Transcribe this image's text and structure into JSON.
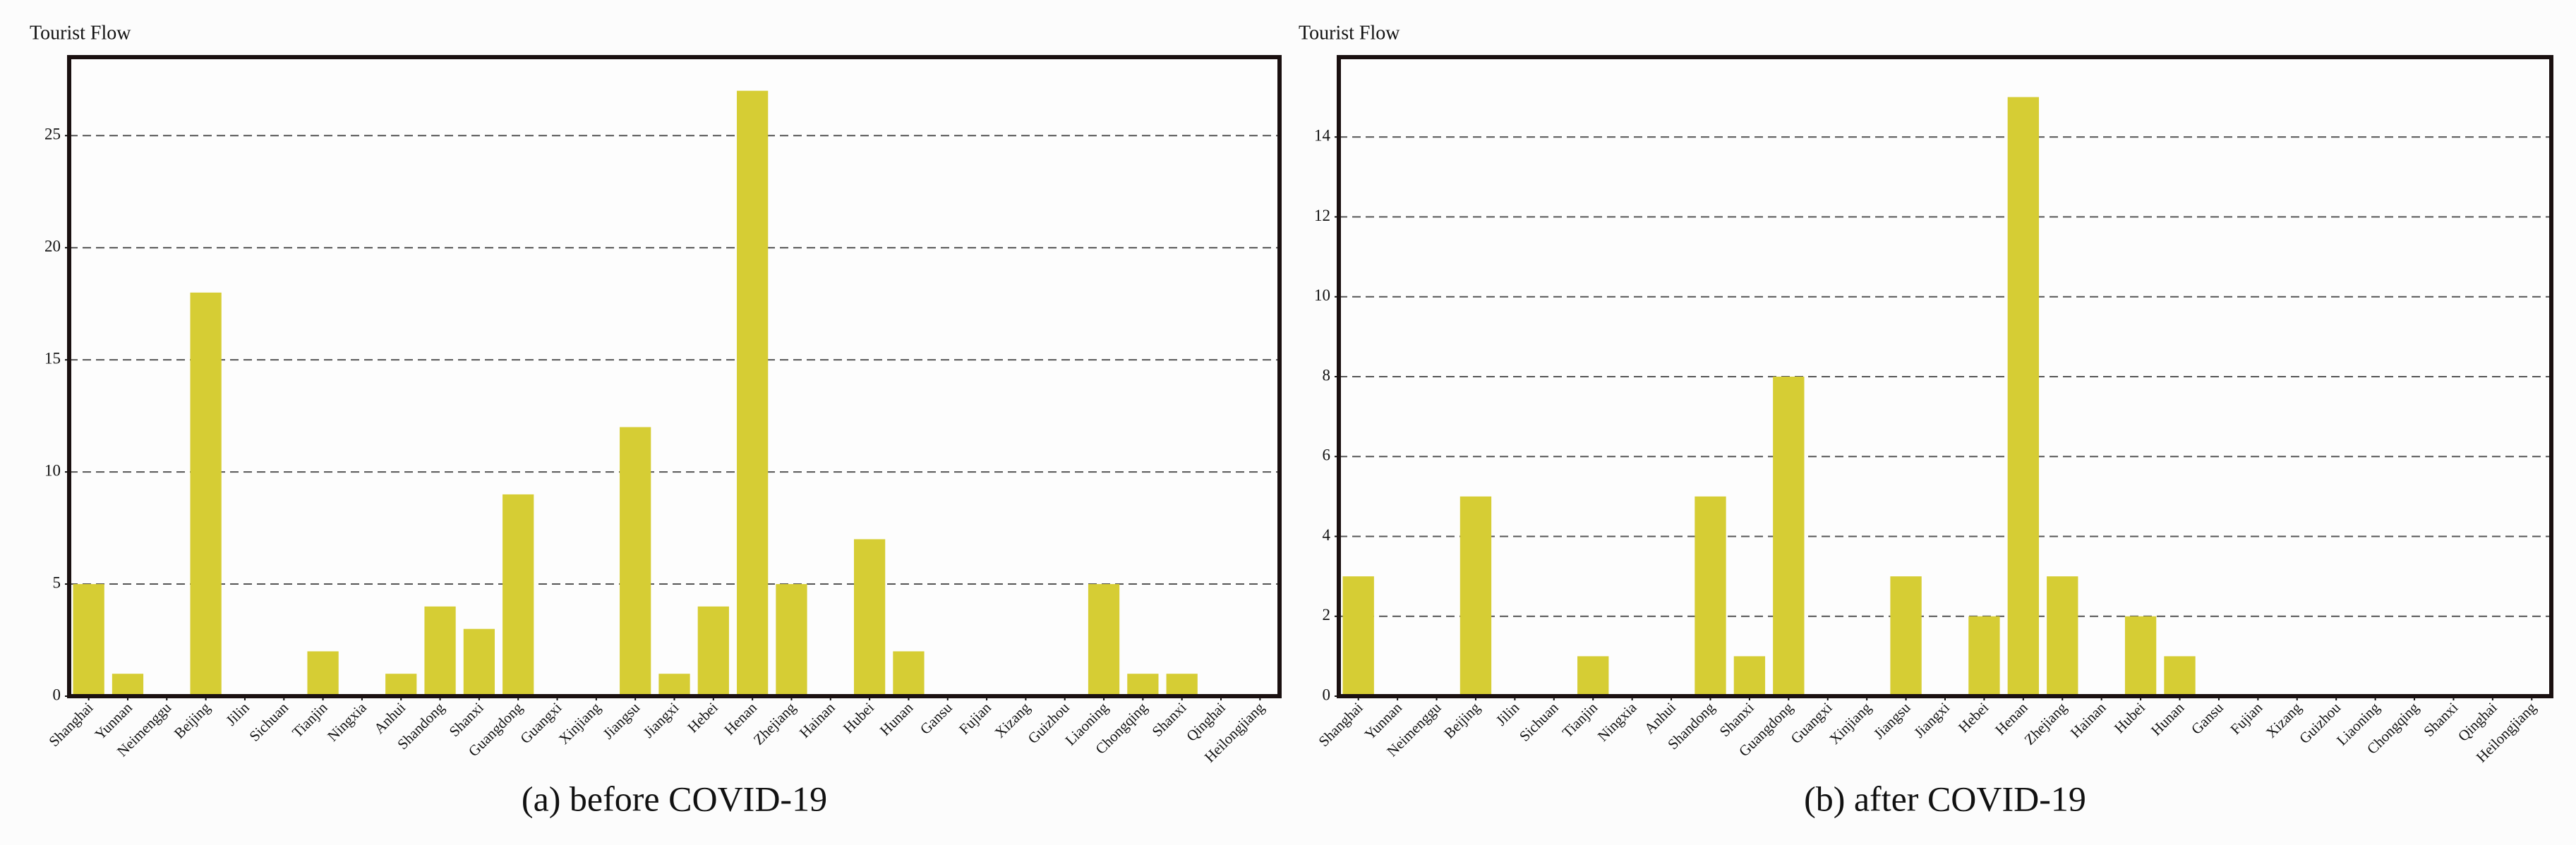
{
  "chart_data": [
    {
      "type": "bar",
      "y_label": "Tourist Flow",
      "caption": "(a) before COVID-19",
      "categories": [
        "Shanghai",
        "Yunnan",
        "Neimenggu",
        "Beijing",
        "Jilin",
        "Sichuan",
        "Tianjin",
        "Ningxia",
        "Anhui",
        "Shandong",
        "Shanxi",
        "Guangdong",
        "Guangxi",
        "Xinjiang",
        "Jiangsu",
        "Jiangxi",
        "Hebei",
        "Henan",
        "Zhejiang",
        "Hainan",
        "Hubei",
        "Hunan",
        "Gansu",
        "Fujian",
        "Xizang",
        "Guizhou",
        "Liaoning",
        "Chongqing",
        "Shanxi",
        "Qinghai",
        "Heilongjiang"
      ],
      "values": [
        5,
        1,
        0,
        18,
        0,
        0,
        2,
        0,
        1,
        4,
        3,
        9,
        0,
        0,
        12,
        1,
        4,
        27,
        5,
        0,
        7,
        2,
        0,
        0,
        0,
        0,
        5,
        1,
        1,
        0,
        0
      ],
      "color": "#d6cd34",
      "ylim": [
        0,
        28.5
      ],
      "yticks": [
        0,
        5,
        10,
        15,
        20,
        25
      ],
      "grid": true
    },
    {
      "type": "bar",
      "y_label": "Tourist Flow",
      "caption": "(b) after COVID-19",
      "categories": [
        "Shanghai",
        "Yunnan",
        "Neimenggu",
        "Beijing",
        "Jilin",
        "Sichuan",
        "Tianjin",
        "Ningxia",
        "Anhui",
        "Shandong",
        "Shanxi",
        "Guangdong",
        "Guangxi",
        "Xinjiang",
        "Jiangsu",
        "Jiangxi",
        "Hebei",
        "Henan",
        "Zhejiang",
        "Hainan",
        "Hubei",
        "Hunan",
        "Gansu",
        "Fujian",
        "Xizang",
        "Guizhou",
        "Liaoning",
        "Chongqing",
        "Shanxi",
        "Qinghai",
        "Heilongjiang"
      ],
      "values": [
        3,
        0,
        0,
        5,
        0,
        0,
        1,
        0,
        0,
        5,
        1,
        8,
        0,
        0,
        3,
        0,
        2,
        15,
        3,
        0,
        2,
        1,
        0,
        0,
        0,
        0,
        0,
        0,
        0,
        0,
        0
      ],
      "color": "#d6cd34",
      "ylim": [
        0,
        16
      ],
      "yticks": [
        0,
        2,
        4,
        6,
        8,
        10,
        12,
        14
      ],
      "grid": true
    }
  ]
}
